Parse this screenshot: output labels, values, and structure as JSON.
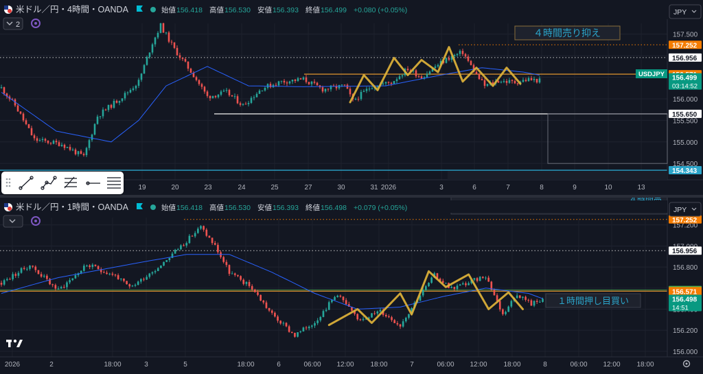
{
  "symbol": {
    "name_prefix": "米ドル／円・",
    "broker": "・OANDA"
  },
  "top_pane": {
    "timeframe": "4時間",
    "ohlc": {
      "open_label": "始値",
      "open": "156.418",
      "high_label": "高値",
      "high": "156.530",
      "low_label": "安値",
      "low": "156.393",
      "close_label": "終値",
      "close": "156.499",
      "change": "+0.080 (+0.05%)"
    },
    "indicator_count": "2",
    "currency_button": "JPY",
    "price_badges": [
      {
        "value": "157.252",
        "color": "#f57c00",
        "role": "resistance-line"
      },
      {
        "value": "156.956",
        "color": "#ffffff",
        "role": "dotted-line"
      },
      {
        "value": "156.571",
        "color": "#f57c00",
        "role": "orange-line"
      },
      {
        "value": "156.499",
        "color": "#089981",
        "role": "last-price",
        "countdown": "03:14:52"
      },
      {
        "value": "155.650",
        "color": "#ffffff",
        "role": "support-line"
      },
      {
        "value": "154.343",
        "color": "#2ba4c9",
        "role": "cyan-line"
      }
    ],
    "series_tag": "USDJPY",
    "annotation": "４時間売り抑え",
    "date_ticks": [
      {
        "label": "19",
        "x": 207
      },
      {
        "label": "20",
        "x": 255
      },
      {
        "label": "23",
        "x": 303
      },
      {
        "label": "24",
        "x": 352
      },
      {
        "label": "25",
        "x": 400
      },
      {
        "label": "27",
        "x": 449
      },
      {
        "label": "30",
        "x": 497
      },
      {
        "label": "31",
        "x": 545
      },
      {
        "label": "2026",
        "x": 566
      },
      {
        "label": "3",
        "x": 643
      },
      {
        "label": "6",
        "x": 691
      },
      {
        "label": "7",
        "x": 740
      },
      {
        "label": "8",
        "x": 789
      },
      {
        "label": "9",
        "x": 837
      },
      {
        "label": "10",
        "x": 886
      },
      {
        "label": "13",
        "x": 934
      }
    ],
    "chart_data": {
      "type": "candlestick",
      "title": "米ドル／円・4時間・OANDA",
      "yticks": [
        154.5,
        155.0,
        155.5,
        156.0,
        156.5,
        157.0,
        157.5
      ],
      "ylim": [
        154.28,
        157.75
      ],
      "levels": {
        "resistance": 157.252,
        "dotted": 156.956,
        "orange": 156.571,
        "support": 155.65,
        "cyan": 154.343
      },
      "seed": 11,
      "anchors": [
        [
          0,
          156.25
        ],
        [
          5,
          155.85
        ],
        [
          12,
          155.05
        ],
        [
          22,
          154.95
        ],
        [
          30,
          154.65
        ],
        [
          35,
          155.6
        ],
        [
          45,
          156.1
        ],
        [
          50,
          156.4
        ],
        [
          55,
          157.3
        ],
        [
          58,
          157.7
        ],
        [
          63,
          157.15
        ],
        [
          70,
          156.55
        ],
        [
          75,
          156.05
        ],
        [
          82,
          156.15
        ],
        [
          88,
          155.85
        ],
        [
          95,
          156.25
        ],
        [
          102,
          156.4
        ],
        [
          110,
          156.45
        ],
        [
          117,
          156.22
        ],
        [
          125,
          156.3
        ],
        [
          128,
          155.95
        ],
        [
          135,
          156.3
        ],
        [
          142,
          156.38
        ],
        [
          148,
          156.7
        ],
        [
          153,
          156.5
        ],
        [
          158,
          156.75
        ],
        [
          163,
          156.95
        ],
        [
          168,
          157.08
        ],
        [
          173,
          156.55
        ],
        [
          176,
          156.3
        ],
        [
          181,
          156.42
        ],
        [
          187,
          156.38
        ],
        [
          192,
          156.45
        ],
        [
          196,
          156.42
        ]
      ],
      "ma": [
        [
          0,
          156.15
        ],
        [
          20,
          155.25
        ],
        [
          40,
          155.0
        ],
        [
          50,
          155.5
        ],
        [
          60,
          156.3
        ],
        [
          70,
          156.6
        ],
        [
          75,
          156.75
        ],
        [
          90,
          156.3
        ],
        [
          110,
          156.28
        ],
        [
          140,
          156.3
        ],
        [
          160,
          156.55
        ],
        [
          175,
          156.72
        ],
        [
          190,
          156.62
        ],
        [
          196,
          156.55
        ]
      ],
      "zigzag": [
        [
          127,
          155.92
        ],
        [
          132,
          156.55
        ],
        [
          137,
          156.2
        ],
        [
          143,
          156.95
        ],
        [
          148,
          156.55
        ],
        [
          153,
          156.9
        ],
        [
          159,
          156.62
        ],
        [
          163,
          157.2
        ],
        [
          168,
          156.4
        ],
        [
          173,
          156.72
        ],
        [
          179,
          156.3
        ],
        [
          184,
          156.72
        ],
        [
          189,
          156.35
        ]
      ],
      "xstart": 2,
      "xstep": 4.0
    }
  },
  "bottom_pane": {
    "timeframe": "1時間",
    "ohlc": {
      "open_label": "始値",
      "open": "156.418",
      "high_label": "高値",
      "high": "156.530",
      "low_label": "安値",
      "low": "156.393",
      "close_label": "終値",
      "close": "156.498",
      "change": "+0.079 (+0.05%)"
    },
    "currency_button": "JPY",
    "annotation_top_cut": "４時間売",
    "annotation": "１時間押し目買い",
    "price_badges": [
      {
        "value": "157.252",
        "color": "#f57c00",
        "role": "resistance-line"
      },
      {
        "value": "156.956",
        "color": "#ffffff",
        "role": "dotted-line"
      },
      {
        "value": "156.582",
        "color": "#4caf50",
        "role": "green-line"
      },
      {
        "value": "156.571",
        "color": "#f57c00",
        "role": "orange-line"
      },
      {
        "value": "156.498",
        "color": "#089981",
        "role": "last-price",
        "countdown": "14:51"
      }
    ],
    "date_ticks": [
      {
        "label": "2026",
        "x": 18
      },
      {
        "label": "2",
        "x": 75
      },
      {
        "label": "18:00",
        "x": 164
      },
      {
        "label": "3",
        "x": 213
      },
      {
        "label": "5",
        "x": 270
      },
      {
        "label": "18:00",
        "x": 358
      },
      {
        "label": "6",
        "x": 406
      },
      {
        "label": "06:00",
        "x": 455
      },
      {
        "label": "12:00",
        "x": 503
      },
      {
        "label": "18:00",
        "x": 552
      },
      {
        "label": "7",
        "x": 600
      },
      {
        "label": "06:00",
        "x": 649
      },
      {
        "label": "12:00",
        "x": 697
      },
      {
        "label": "18:00",
        "x": 746
      },
      {
        "label": "8",
        "x": 794
      },
      {
        "label": "06:00",
        "x": 843
      },
      {
        "label": "12:00",
        "x": 891
      },
      {
        "label": "18:00",
        "x": 940
      }
    ],
    "chart_data": {
      "type": "candlestick",
      "title": "米ドル／円・1時間・OANDA",
      "yticks": [
        156.0,
        156.2,
        156.4,
        156.6,
        156.8,
        157.0,
        157.2
      ],
      "ylim": [
        155.98,
        157.27
      ],
      "levels": {
        "resistance": 157.252,
        "dotted": 156.956,
        "green": 156.582,
        "orange": 156.571
      },
      "seed": 23,
      "anchors": [
        [
          0,
          156.65
        ],
        [
          10,
          156.82
        ],
        [
          20,
          156.58
        ],
        [
          30,
          156.82
        ],
        [
          40,
          156.72
        ],
        [
          45,
          156.6
        ],
        [
          55,
          156.8
        ],
        [
          65,
          157.05
        ],
        [
          70,
          157.18
        ],
        [
          75,
          157.0
        ],
        [
          80,
          156.75
        ],
        [
          88,
          156.6
        ],
        [
          95,
          156.35
        ],
        [
          103,
          156.15
        ],
        [
          110,
          156.28
        ],
        [
          118,
          156.55
        ],
        [
          125,
          156.3
        ],
        [
          133,
          156.38
        ],
        [
          140,
          156.25
        ],
        [
          146,
          156.5
        ],
        [
          152,
          156.72
        ],
        [
          158,
          156.6
        ],
        [
          164,
          156.65
        ],
        [
          170,
          156.72
        ],
        [
          176,
          156.35
        ],
        [
          181,
          156.55
        ],
        [
          186,
          156.45
        ],
        [
          190,
          156.5
        ]
      ],
      "ma": [
        [
          0,
          156.55
        ],
        [
          20,
          156.7
        ],
        [
          50,
          156.85
        ],
        [
          65,
          156.92
        ],
        [
          80,
          156.92
        ],
        [
          95,
          156.75
        ],
        [
          110,
          156.55
        ],
        [
          125,
          156.4
        ],
        [
          140,
          156.42
        ],
        [
          155,
          156.52
        ],
        [
          170,
          156.6
        ],
        [
          185,
          156.55
        ],
        [
          190,
          156.5
        ]
      ],
      "zigzag": [
        [
          115,
          156.25
        ],
        [
          125,
          156.4
        ],
        [
          130,
          156.27
        ],
        [
          140,
          156.55
        ],
        [
          144,
          156.35
        ],
        [
          150,
          156.76
        ],
        [
          156,
          156.61
        ],
        [
          164,
          156.73
        ],
        [
          171,
          156.4
        ],
        [
          178,
          156.56
        ],
        [
          183,
          156.4
        ]
      ],
      "xstart": 2,
      "xstep": 4.15
    }
  }
}
